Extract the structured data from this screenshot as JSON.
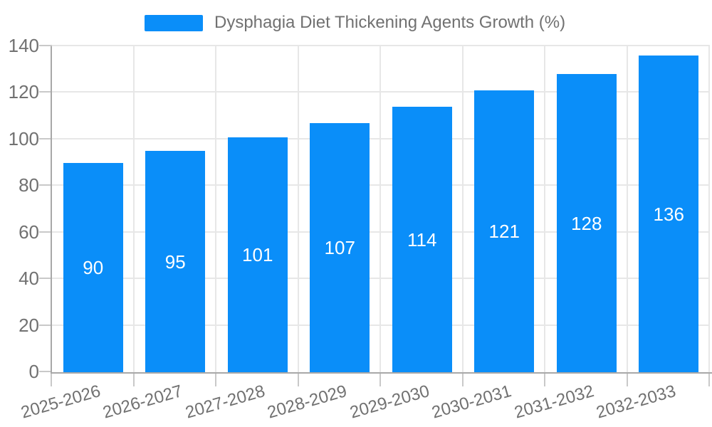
{
  "legend": {
    "label": "Dysphagia Diet Thickening Agents Growth (%)"
  },
  "chart_data": {
    "type": "bar",
    "title": "Dysphagia Diet Thickening Agents Growth (%)",
    "categories": [
      "2025-2026",
      "2026-2027",
      "2027-2028",
      "2028-2029",
      "2029-2030",
      "2030-2031",
      "2031-2032",
      "2032-2033"
    ],
    "values": [
      90,
      95,
      101,
      107,
      114,
      121,
      128,
      136
    ],
    "xlabel": "",
    "ylabel": "",
    "ylim": [
      0,
      140
    ],
    "ytick_step": 20,
    "ytick_labels": [
      "0",
      "20",
      "40",
      "60",
      "80",
      "100",
      "120",
      "140"
    ],
    "grid": true,
    "legend_position": "top",
    "value_labels_position": "inside-center",
    "colors": {
      "bar": "#0a8ef9",
      "value_label": "#ffffff",
      "axis_text": "#717171",
      "grid_line": "#e7e7e7",
      "axis_line": "#a8a8a8",
      "tick_line": "#c9c9c9",
      "background": "#ffffff"
    }
  }
}
